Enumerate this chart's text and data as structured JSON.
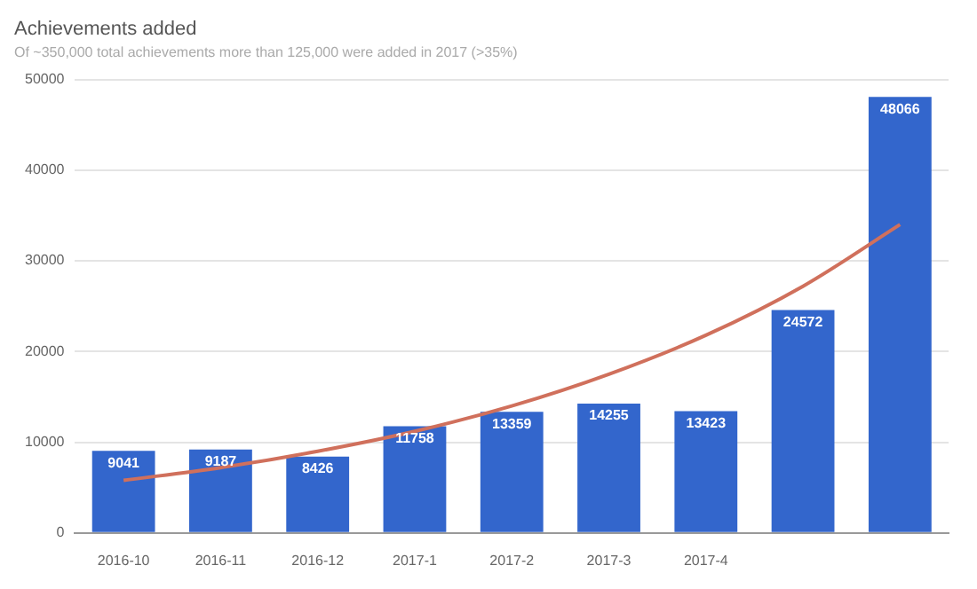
{
  "chart_data": {
    "type": "bar",
    "title": "Achievements added",
    "subtitle": "Of ~350,000 total achievements more than 125,000 were added in 2017 (>35%)",
    "categories": [
      "2016-10",
      "2016-11",
      "2016-12",
      "2017-1",
      "2017-2",
      "2017-3",
      "2017-4",
      null,
      null
    ],
    "series": [
      {
        "color": "#3366cc",
        "values": [
          9041,
          9187,
          8426,
          11758,
          13359,
          14255,
          13423,
          24572,
          48066
        ],
        "value_labels": [
          "9041",
          "9187",
          "8426",
          "11758",
          "13359",
          "14255",
          "13423",
          "24572",
          "48066"
        ]
      },
      {
        "type": "line",
        "color": "#d0705c",
        "values": [
          5800,
          7200,
          9000,
          11200,
          14000,
          17500,
          21800,
          27200,
          34000
        ]
      }
    ],
    "ylim": [
      0,
      50000
    ],
    "yticks": [
      0,
      10000,
      20000,
      30000,
      40000,
      50000
    ],
    "grid": "y",
    "legend": false
  }
}
